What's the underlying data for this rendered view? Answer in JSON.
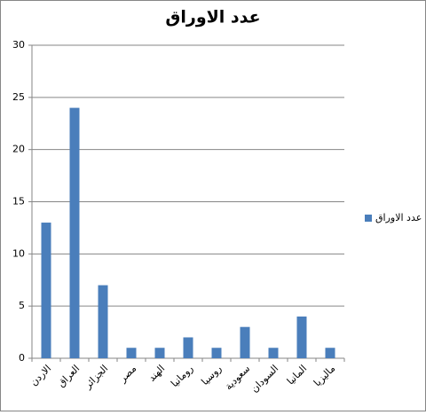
{
  "chart_data": {
    "type": "bar",
    "title": "عدد الاوراق",
    "categories": [
      "الاردن",
      "العراق",
      "الجزائر",
      "مصر",
      "الهند",
      "رومانيا",
      "روسيا",
      "سعودية",
      "السودان",
      "المانيا",
      "ماليزيا"
    ],
    "series": [
      {
        "name": "عدد الاوراق",
        "color": "#4a7ebb",
        "values": [
          13,
          24,
          7,
          1,
          1,
          2,
          1,
          3,
          1,
          4,
          1
        ]
      }
    ],
    "ylim": [
      0,
      30
    ],
    "yticks": [
      0,
      5,
      10,
      15,
      20,
      25,
      30
    ],
    "grid": true,
    "legend": "right"
  }
}
